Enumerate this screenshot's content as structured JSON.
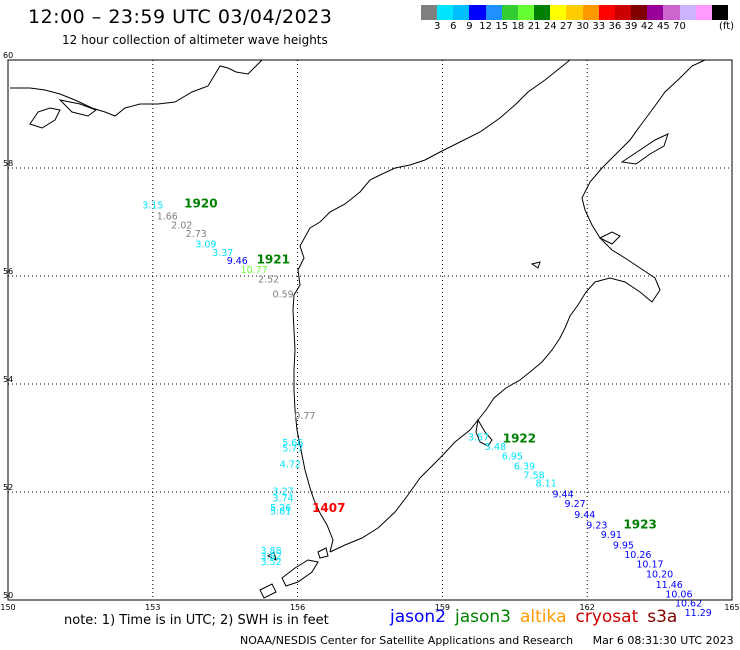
{
  "header": {
    "title": "12:00 – 23:59 UTC 03/04/2023",
    "subtitle": "12 hour collection of altimeter wave heights"
  },
  "colorbar": {
    "colors": [
      "#7f7f7f",
      "#00e5ff",
      "#00bfff",
      "#0000ff",
      "#1e90ff",
      "#33cc33",
      "#66ff33",
      "#008000",
      "#ffff00",
      "#ffcc00",
      "#ff9900",
      "#ff0000",
      "#cc0000",
      "#800000",
      "#990099",
      "#cc66cc",
      "#ccb3ff",
      "#ff99ff",
      "#000000"
    ],
    "tick_labels": [
      "3",
      "6",
      "9",
      "12",
      "15",
      "18",
      "21",
      "24",
      "27",
      "30",
      "33",
      "36",
      "39",
      "42",
      "45",
      "70"
    ],
    "unit": "(ft)"
  },
  "map": {
    "lon_min": 150,
    "lon_max": 165,
    "lat_min": 50,
    "lat_max": 60,
    "x_ticks": [
      150,
      153,
      156,
      159,
      162,
      165
    ],
    "y_ticks": [
      50,
      52,
      54,
      56,
      58,
      60
    ],
    "x_tick_labels": [
      "150",
      "153",
      "156",
      "159",
      "162",
      "165"
    ],
    "y_tick_labels": [
      "50",
      "52",
      "54",
      "56",
      "58",
      "60"
    ]
  },
  "tracks": [
    {
      "label": "1920",
      "label_color": "#008000",
      "label_lon": 153.65,
      "label_lat": 57.27,
      "points": [
        {
          "lon": 153.0,
          "lat": 57.25,
          "value": "3.15",
          "color": "#00e5ff"
        },
        {
          "lon": 153.3,
          "lat": 57.05,
          "value": "1.66",
          "color": "#7f7f7f"
        },
        {
          "lon": 153.6,
          "lat": 56.88,
          "value": "2.02",
          "color": "#7f7f7f"
        },
        {
          "lon": 153.9,
          "lat": 56.72,
          "value": "2.73",
          "color": "#7f7f7f"
        },
        {
          "lon": 154.1,
          "lat": 56.53,
          "value": "3.09",
          "color": "#00e5ff"
        },
        {
          "lon": 154.45,
          "lat": 56.37,
          "value": "3.37",
          "color": "#00e5ff"
        },
        {
          "lon": 154.75,
          "lat": 56.22,
          "value": "9.46",
          "color": "#0000ff"
        },
        {
          "lon": 155.1,
          "lat": 56.06,
          "value": "10.77",
          "color": "#66ff33"
        },
        {
          "lon": 155.4,
          "lat": 55.88,
          "value": "2.52",
          "color": "#7f7f7f"
        },
        {
          "lon": 155.7,
          "lat": 55.6,
          "value": "0.59",
          "color": "#7f7f7f"
        }
      ]
    },
    {
      "label": "1921",
      "label_color": "#008000",
      "label_lon": 155.15,
      "label_lat": 56.23,
      "points": []
    },
    {
      "label": "1407",
      "label_color": "#ff0000",
      "label_lon": 156.3,
      "label_lat": 51.63,
      "points": [
        {
          "lon": 156.15,
          "lat": 53.35,
          "value": "0.77",
          "color": "#7f7f7f"
        },
        {
          "lon": 155.9,
          "lat": 52.85,
          "value": "5.66",
          "color": "#00e5ff"
        },
        {
          "lon": 155.9,
          "lat": 52.75,
          "value": "5.77",
          "color": "#00e5ff"
        },
        {
          "lon": 155.85,
          "lat": 52.45,
          "value": "4.72",
          "color": "#00e5ff"
        },
        {
          "lon": 155.7,
          "lat": 51.95,
          "value": "3.27",
          "color": "#00e5ff"
        },
        {
          "lon": 155.7,
          "lat": 51.82,
          "value": "3.74",
          "color": "#00e5ff"
        },
        {
          "lon": 155.65,
          "lat": 51.65,
          "value": "5.26",
          "color": "#00e5ff"
        },
        {
          "lon": 155.65,
          "lat": 51.58,
          "value": "5.81",
          "color": "#00e5ff"
        },
        {
          "lon": 155.45,
          "lat": 50.85,
          "value": "3.88",
          "color": "#00e5ff"
        },
        {
          "lon": 155.45,
          "lat": 50.75,
          "value": "3.82",
          "color": "#00e5ff"
        },
        {
          "lon": 155.45,
          "lat": 50.65,
          "value": "3.52",
          "color": "#00e5ff"
        }
      ]
    },
    {
      "label": "1922",
      "label_color": "#008000",
      "label_lon": 160.25,
      "label_lat": 52.92,
      "points": [
        {
          "lon": 159.75,
          "lat": 52.95,
          "value": "3.57",
          "color": "#00e5ff"
        },
        {
          "lon": 160.1,
          "lat": 52.78,
          "value": "5.48",
          "color": "#00e5ff"
        },
        {
          "lon": 160.45,
          "lat": 52.6,
          "value": "6.95",
          "color": "#00e5ff"
        },
        {
          "lon": 160.7,
          "lat": 52.42,
          "value": "6.39",
          "color": "#00e5ff"
        },
        {
          "lon": 160.9,
          "lat": 52.25,
          "value": "7.58",
          "color": "#00e5ff"
        },
        {
          "lon": 161.15,
          "lat": 52.1,
          "value": "8.11",
          "color": "#00e5ff"
        },
        {
          "lon": 161.5,
          "lat": 51.9,
          "value": "9.44",
          "color": "#0000ff"
        },
        {
          "lon": 161.75,
          "lat": 51.72,
          "value": "9.27",
          "color": "#0000ff"
        },
        {
          "lon": 161.95,
          "lat": 51.52,
          "value": "9.44",
          "color": "#0000ff"
        },
        {
          "lon": 162.2,
          "lat": 51.32,
          "value": "9.23",
          "color": "#0000ff"
        },
        {
          "lon": 162.5,
          "lat": 51.15,
          "value": "9.91",
          "color": "#0000ff"
        },
        {
          "lon": 162.75,
          "lat": 50.95,
          "value": "9.95",
          "color": "#0000ff"
        },
        {
          "lon": 163.05,
          "lat": 50.78,
          "value": "10.26",
          "color": "#0000ff"
        },
        {
          "lon": 163.3,
          "lat": 50.6,
          "value": "10.17",
          "color": "#0000ff"
        },
        {
          "lon": 163.5,
          "lat": 50.42,
          "value": "10.20",
          "color": "#0000ff"
        },
        {
          "lon": 163.7,
          "lat": 50.22,
          "value": "11.46",
          "color": "#0000ff"
        },
        {
          "lon": 163.9,
          "lat": 50.05,
          "value": "10.06",
          "color": "#0000ff"
        },
        {
          "lon": 164.1,
          "lat": 49.88,
          "value": "10.62",
          "color": "#0000ff"
        },
        {
          "lon": 164.3,
          "lat": 49.7,
          "value": "11.29",
          "color": "#0000ff"
        }
      ]
    },
    {
      "label": "1923",
      "label_color": "#008000",
      "label_lon": 162.75,
      "label_lat": 51.32,
      "points": []
    }
  ],
  "note": "note:  1) Time is in UTC;  2) SWH is in feet",
  "legend": [
    {
      "label": "jason2",
      "color": "#0000ff"
    },
    {
      "label": "jason3",
      "color": "#008000"
    },
    {
      "label": "altika",
      "color": "#ff9900"
    },
    {
      "label": "cryosat",
      "color": "#cc0000"
    },
    {
      "label": "s3a",
      "color": "#800000"
    }
  ],
  "footer": {
    "credit": "NOAA/NESDIS Center for Satellite Applications and Research",
    "timestamp": "Mar  6 08:31:30 UTC 2023"
  }
}
